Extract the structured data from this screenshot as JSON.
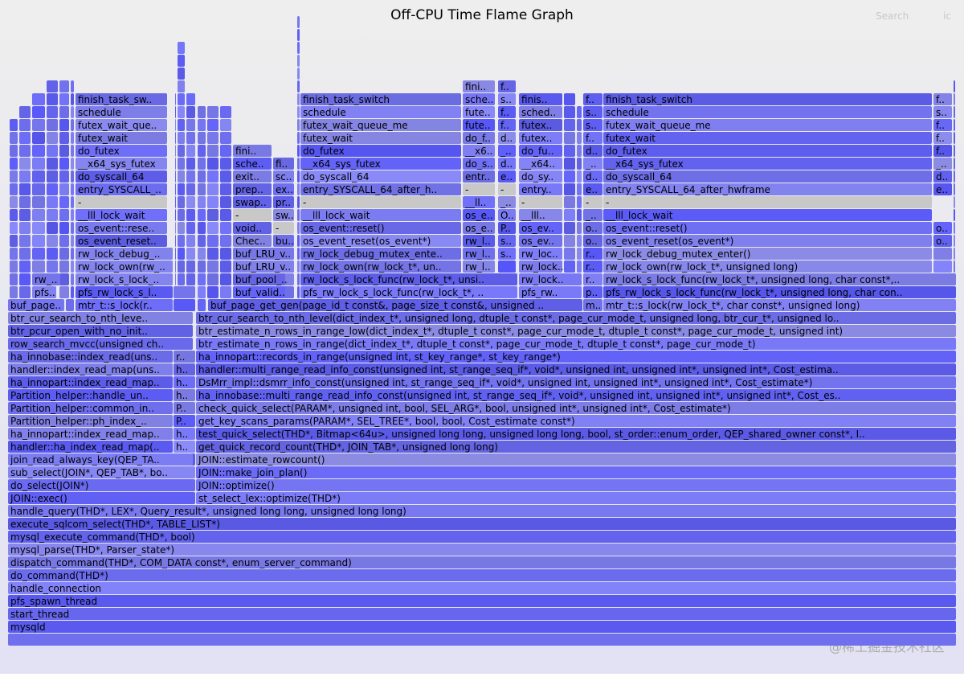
{
  "header": {
    "title": "Off-CPU Time Flame Graph",
    "search": "Search",
    "ic": "ic"
  },
  "frames": [
    "mysqld",
    "start_thread",
    "pfs_spawn_thread",
    "handle_connection",
    "do_command(THD*)",
    "dispatch_command(THD*, COM_DATA const*, enum_server_command)",
    "mysql_parse(THD*, Parser_state*)",
    "mysql_execute_command(THD*, bool)",
    "execute_sqlcom_select(THD*, TABLE_LIST*)",
    "handle_query(THD*, LEX*, Query_result*, unsigned long long, unsigned long long)",
    "JOIN::exec()",
    "st_select_lex::optimize(THD*)",
    "do_select(JOIN*)",
    "JOIN::optimize()",
    "sub_select(JOIN*, QEP_TAB*, bo..",
    "JOIN::make_join_plan()",
    "join_read_always_key(QEP_TA..",
    "JOIN::estimate_rowcount()",
    "handler::ha_index_read_map(..",
    "h..",
    "get_quick_record_count(THD*, JOIN_TAB*, unsigned long long)",
    "ha_innopart::index_read_map..",
    "h..",
    "test_quick_select(THD*, Bitmap<64u>, unsigned long long, unsigned long long, bool, st_order::enum_order, QEP_shared_owner const*, I..",
    "Partition_helper::ph_index_..",
    "P..",
    "get_key_scans_params(PARAM*, SEL_TREE*, bool, bool, Cost_estimate const*)",
    "Partition_helper::common_in..",
    "P..",
    "check_quick_select(PARAM*, unsigned int, bool, SEL_ARG*, bool, unsigned int*, unsigned int*, Cost_estimate*)",
    "Partition_helper::handle_un..",
    "h..",
    "ha_innobase::multi_range_read_info_const(unsigned int, st_range_seq_if*, void*, unsigned int, unsigned int*, unsigned int*, Cost_es..",
    "ha_innopart::index_read_map..",
    "h..",
    "DsMrr_impl::dsmrr_info_const(unsigned int, st_range_seq_if*, void*, unsigned int, unsigned int*, unsigned int*, Cost_estimate*)",
    "handler::index_read_map(uns..",
    "h..",
    "handler::multi_range_read_info_const(unsigned int, st_range_seq_if*, void*, unsigned int, unsigned int*, unsigned int*, Cost_estima..",
    "ha_innobase::index_read(uns..",
    "r..",
    "ha_innopart::records_in_range(unsigned int, st_key_range*, st_key_range*)",
    "row_search_mvcc(unsigned ch..",
    "btr_estimate_n_rows_in_range(dict_index_t*, dtuple_t const*, page_cur_mode_t, dtuple_t const*, page_cur_mode_t)",
    "btr_pcur_open_with_no_init..",
    "btr_estimate_n_rows_in_range_low(dict_index_t*, dtuple_t const*, page_cur_mode_t, dtuple_t const*, page_cur_mode_t, unsigned int)",
    "btr_cur_search_to_nth_leve..",
    "btr_cur_search_to_nth_level(dict_index_t*, unsigned long, dtuple_t const*, page_cur_mode_t, unsigned long, btr_cur_t*, unsigned lo..",
    "buf_page..",
    "mtr_t::s_lock(r..",
    "buf_page_get_gen(page_id_t const&, page_size_t const&, unsigned ..",
    "m..",
    "mtr_t::s_lock(rw_lock_t*, char const*, unsigned long)",
    "pfs..",
    "pfs_rw_lock_s_l..",
    "buf_valid..",
    "pfs_rw_lock_s_lock_func(rw_lock_t*, ..",
    "pfs_rw..",
    "p..",
    "pfs_rw_lock_s_lock_func(rw_lock_t*, unsigned long, char con..",
    "rw_..",
    "rw_lock_s_lock_..",
    "buf_pool_..",
    "rw_lock_s_lock_func(rw_lock_t*, unsi..",
    "rw_lock..",
    "r..",
    "rw_lock_s_lock_func(rw_lock_t*, unsigned long, char const*,..",
    "rw_lock_own(rw_..",
    "buf_LRU_v..",
    "rw_lock_own(rw_lock_t*, un..",
    "rw_l..",
    "rw_lock..",
    "r..",
    "rw_lock_own(rw_lock_t*, unsigned long)",
    "rw_lock_debug_..",
    "buf_LRU_v..",
    "rw_lock_debug_mutex_ente..",
    "rw_l..",
    "s..",
    "rw_loc..",
    "r..",
    "rw_lock_debug_mutex_enter()",
    "os_event_reset..",
    "Chec..",
    "bu..",
    "os_event_reset(os_event*)",
    "rw_l..",
    "s..",
    "os_ev..",
    "o..",
    "os_event_reset(os_event*)",
    "o..",
    "os_event::rese..",
    "void..",
    "-",
    "os_event::reset()",
    "os_e..",
    "P..",
    "os_ev..",
    "o..",
    "os_event::reset()",
    "o..",
    "__lll_lock_wait",
    "-",
    "sw..",
    "__lll_lock_wait",
    "os_e..",
    "O..",
    "__lll..",
    "_..",
    "__lll_lock_wait",
    "-",
    "swap..",
    "pr..",
    "-",
    "__ll..",
    "_..",
    "-",
    "-",
    "-",
    "entry_SYSCALL_..",
    "prep..",
    "ex..",
    "entry_SYSCALL_64_after_h..",
    "-",
    "-",
    "entry..",
    "e..",
    "entry_SYSCALL_64_after_hwframe",
    "e..",
    "do_syscall_64",
    "exit..",
    "sc..",
    "do_syscall_64",
    "entr..",
    "e..",
    "do_sy..",
    "d..",
    "do_syscall_64",
    "d..",
    "__x64_sys_futex",
    "sche..",
    "fi..",
    "__x64_sys_futex",
    "do_s..",
    "d..",
    "__x64..",
    "_..",
    "__x64_sys_futex",
    "_..",
    "do_futex",
    "fini..",
    "do_futex",
    "__x6..",
    "_..",
    "do_fu..",
    "d..",
    "do_futex",
    "f..",
    "futex_wait",
    "futex_wait",
    "do_f..",
    "d..",
    "futex..",
    "f..",
    "futex_wait",
    "f..",
    "futex_wait_que..",
    "futex_wait_queue_me",
    "fute..",
    "f..",
    "futex..",
    "s..",
    "futex_wait_queue_me",
    "f..",
    "schedule",
    "schedule",
    "fute..",
    "f..",
    "sched..",
    "s..",
    "schedule",
    "s..",
    "finish_task_sw..",
    "finish_task_switch",
    "sche..",
    "s..",
    "finis..",
    "f..",
    "finish_task_switch",
    "f..",
    "fini..",
    "f.."
  ],
  "watermark": "@稀土掘金技术社区"
}
